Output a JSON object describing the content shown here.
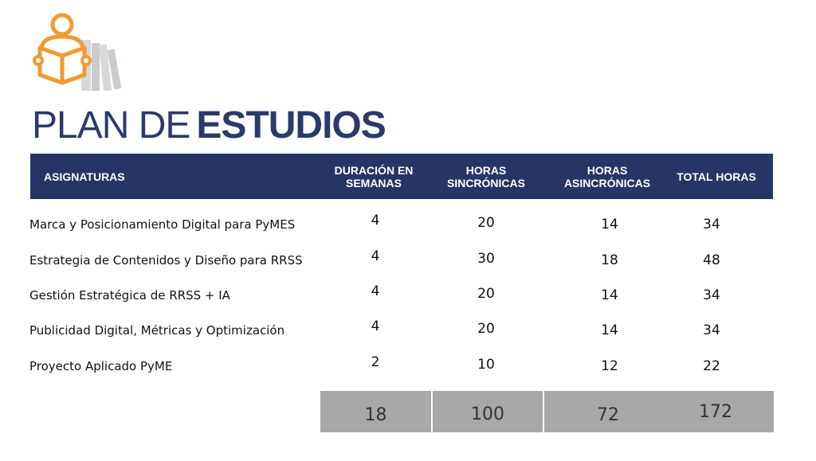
{
  "logo": {
    "icon": "person-reading-book-icon",
    "accent_color": "#f29a2e",
    "secondary_color": "#c9cbcd"
  },
  "title": {
    "light": "PLAN DE",
    "bold": "ESTUDIOS",
    "color": "#2b3a6b"
  },
  "table": {
    "header_color": "#253666",
    "headers": {
      "asignaturas": "ASIGNATURAS",
      "duracion_l1": "DURACIÓN EN",
      "duracion_l2": "SEMANAS",
      "sincronicas_l1": "HORAS",
      "sincronicas_l2": "SINCRÓNICAS",
      "asincronicas_l1": "HORAS",
      "asincronicas_l2": "ASINCRÓNICAS",
      "total": "TOTAL HORAS"
    },
    "rows": [
      {
        "name": "Marca y Posicionamiento Digital para PyMES",
        "duracion": "4",
        "sincronicas": "20",
        "asincronicas": "14",
        "total": "34"
      },
      {
        "name": "Estrategia de Contenidos y Diseño para RRSS",
        "duracion": "4",
        "sincronicas": "30",
        "asincronicas": "18",
        "total": "48"
      },
      {
        "name": "Gestión Estratégica de RRSS + IA",
        "duracion": "4",
        "sincronicas": "20",
        "asincronicas": "14",
        "total": "34"
      },
      {
        "name": "Publicidad Digital, Métricas y Optimización",
        "duracion": "4",
        "sincronicas": "20",
        "asincronicas": "14",
        "total": "34"
      },
      {
        "name": "Proyecto Aplicado PyME",
        "duracion": "2",
        "sincronicas": "10",
        "asincronicas": "12",
        "total": "22"
      }
    ],
    "totals": {
      "duracion": "18",
      "sincronicas": "100",
      "asincronicas": "72",
      "total": "172",
      "color": "#a6a8aa"
    }
  }
}
